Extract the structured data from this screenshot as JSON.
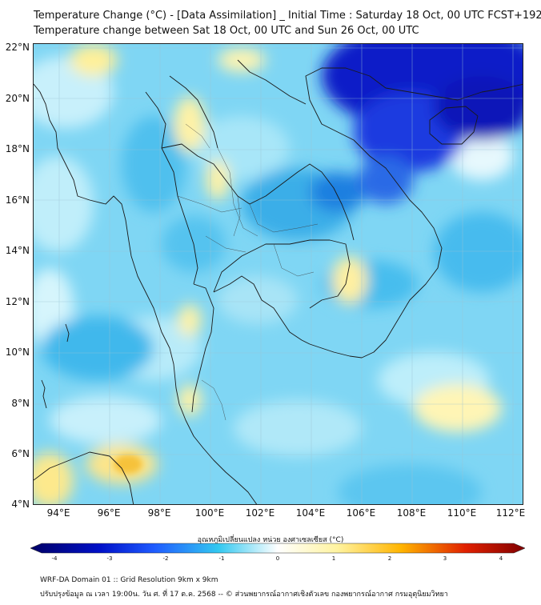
{
  "header": {
    "title_line1": "Temperature Change (°C) - [Data Assimilation] _ Initial Time : Saturday 18 Oct, 00 UTC FCST+192",
    "title_line2": "Temperature change between Sat 18 Oct, 00 UTC and Sun 26 Oct, 00 UTC"
  },
  "map": {
    "lat_labels": [
      "22°N",
      "20°N",
      "18°N",
      "16°N",
      "14°N",
      "12°N",
      "10°N",
      "8°N",
      "6°N",
      "4°N"
    ],
    "lon_labels": [
      "94°E",
      "96°E",
      "98°E",
      "100°E",
      "102°E",
      "104°E",
      "106°E",
      "108°E",
      "110°E",
      "112°E"
    ],
    "lat_range": [
      4,
      22.2
    ],
    "lon_range": [
      93,
      112.4
    ],
    "background_field_color": "#7fd6f4",
    "gridlines": true
  },
  "colorbar": {
    "title": "อุณหภูมิเปลี่ยนแปลง หน่วย องศาเซลเซียส (°C)",
    "ticks": [
      "-4",
      "-3",
      "-2",
      "-1",
      "0",
      "1",
      "2",
      "3",
      "4"
    ],
    "range": [
      -4,
      4
    ],
    "colors": {
      "min": "#000066",
      "neg_mid": "#1f5bff",
      "neg_light": "#33c8f0",
      "zero": "#ffffff",
      "pos_light": "#fff3a0",
      "pos_mid": "#ffb400",
      "max": "#800000"
    }
  },
  "footer": {
    "line1": "WRF-DA Domain 01 :: Grid Resolution 9km x 9km",
    "line2": "ปรับปรุงข้อมูล ณ เวลา 19:00น. วัน ศ. ที่ 17 ต.ค. 2568 -- © ส่วนพยากรณ์อากาศเชิงตัวเลข กองพยากรณ์อากาศ กรมอุตุนิยมวิทยา"
  }
}
